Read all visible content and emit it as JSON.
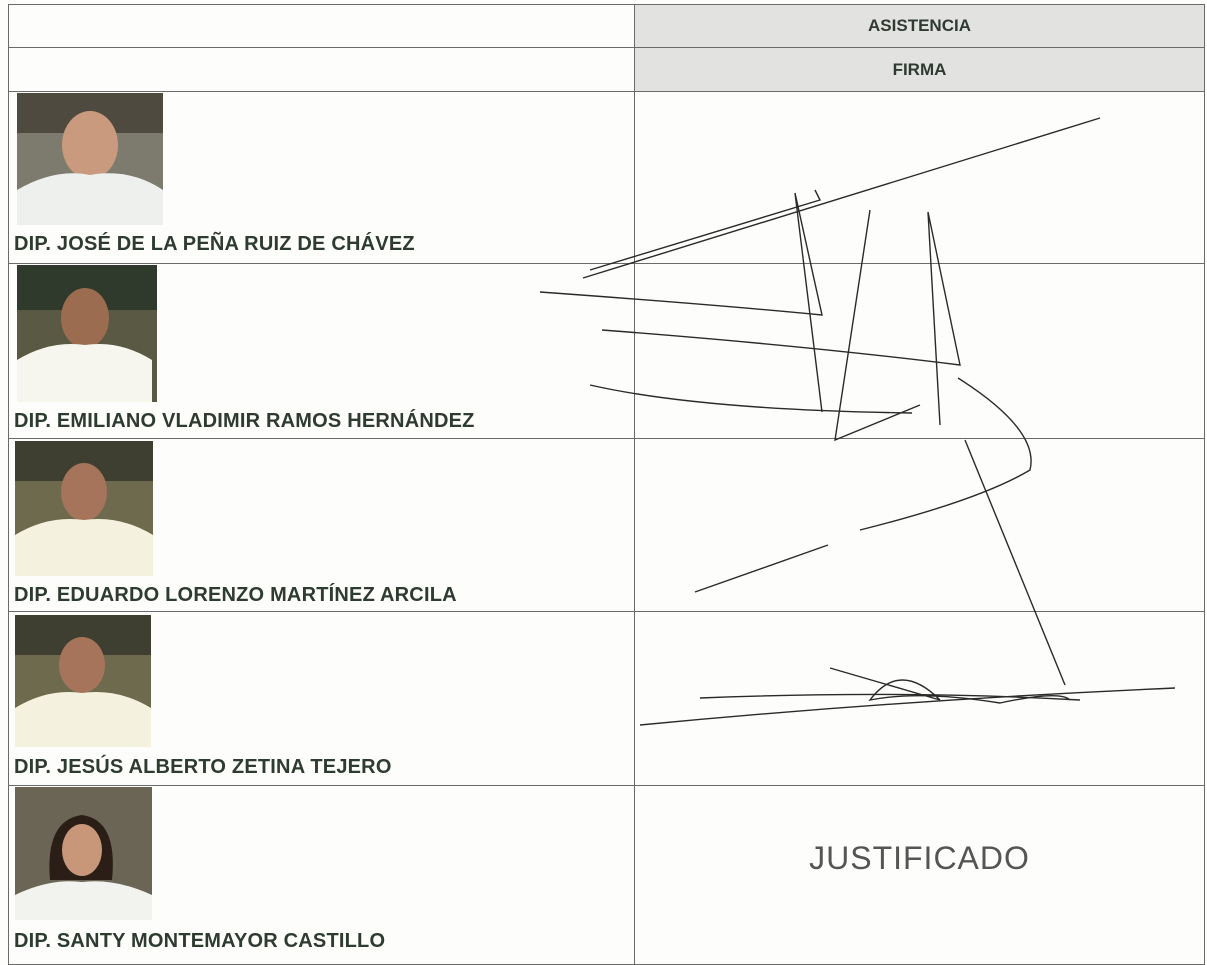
{
  "header": {
    "attendance": "ASISTENCIA",
    "signature": "FIRMA"
  },
  "rows": [
    {
      "name": "DIP. JOSÉ DE LA PEÑA RUIZ DE CHÁVEZ"
    },
    {
      "name": "DIP. EMILIANO VLADIMIR RAMOS HERNÁNDEZ"
    },
    {
      "name": "DIP. EDUARDO LORENZO MARTÍNEZ ARCILA"
    },
    {
      "name": "DIP. JESÚS ALBERTO ZETINA TEJERO"
    },
    {
      "name": "DIP. SANTY MONTEMAYOR CASTILLO",
      "status": "JUSTIFICADO"
    }
  ]
}
